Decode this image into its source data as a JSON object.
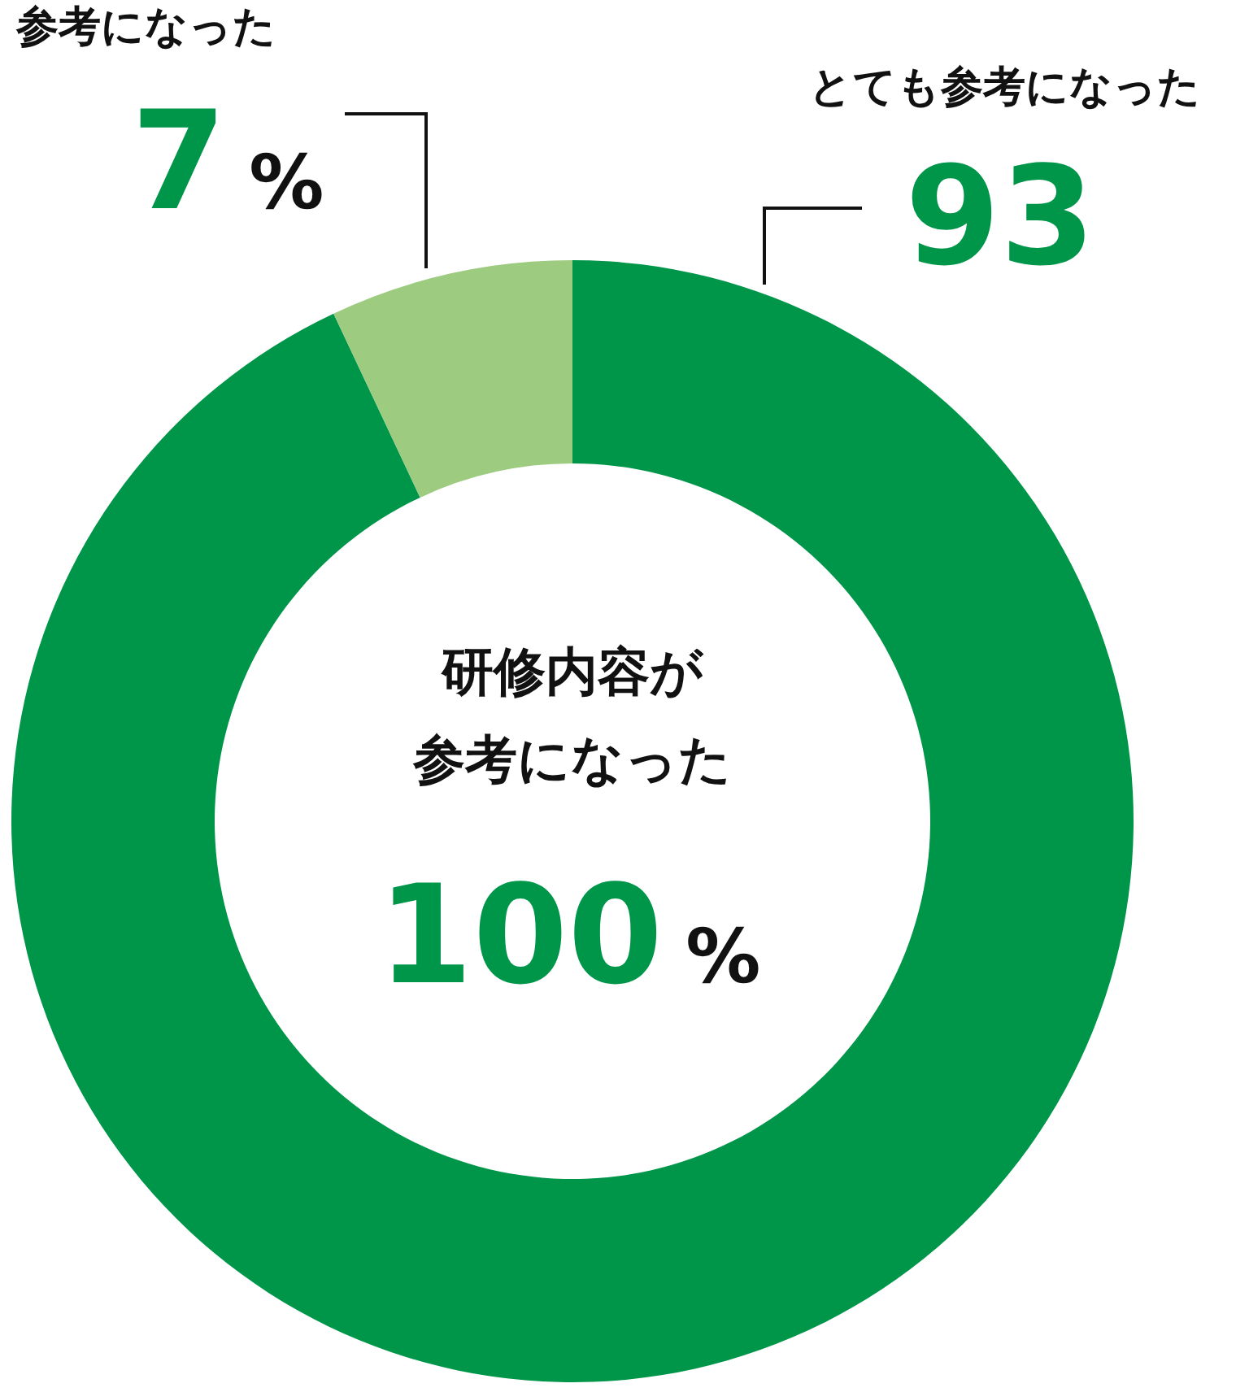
{
  "chart_data": {
    "type": "donut",
    "categories": [
      "とても参考になった",
      "参考になった"
    ],
    "values": [
      93,
      7
    ],
    "value_labels": [
      "93",
      "7%"
    ],
    "colors": [
      "#00964a",
      "#9dcb80"
    ],
    "annotations": [
      "研修内容が",
      "参考になった",
      "100%"
    ]
  }
}
